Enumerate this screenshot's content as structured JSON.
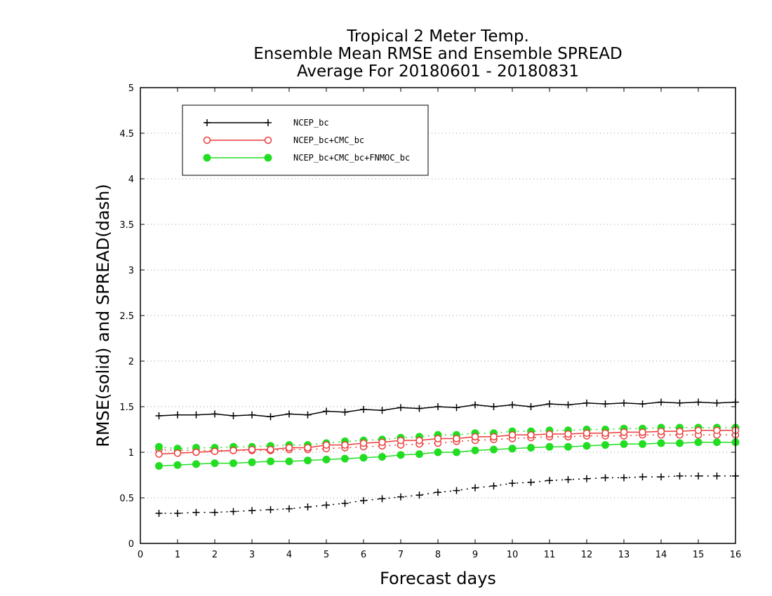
{
  "chart_data": {
    "type": "line",
    "title": [
      "Tropical 2 Meter Temp.",
      "Ensemble Mean RMSE and Ensemble SPREAD",
      "Average For 20180601 - 20180831"
    ],
    "xlabel": "Forecast days",
    "ylabel": "RMSE(solid) and SPREAD(dash)",
    "xlim": [
      0,
      16
    ],
    "ylim": [
      0,
      5
    ],
    "xticks": [
      0,
      1,
      2,
      3,
      4,
      5,
      6,
      7,
      8,
      9,
      10,
      11,
      12,
      13,
      14,
      15,
      16
    ],
    "yticks": [
      0,
      0.5,
      1,
      1.5,
      2,
      2.5,
      3,
      3.5,
      4,
      4.5,
      5
    ],
    "ytick_labels": [
      "0",
      "0.5",
      "1",
      "1.5",
      "2",
      "2.5",
      "3",
      "3.5",
      "4",
      "4.5",
      "5"
    ],
    "grid": "horizontal dotted",
    "legend_position": "top-left",
    "x": [
      0.5,
      1,
      1.5,
      2,
      2.5,
      3,
      3.5,
      4,
      4.5,
      5,
      5.5,
      6,
      6.5,
      7,
      7.5,
      8,
      8.5,
      9,
      9.5,
      10,
      10.5,
      11,
      11.5,
      12,
      12.5,
      13,
      13.5,
      14,
      14.5,
      15,
      15.5,
      16
    ],
    "series": [
      {
        "name": "NCEP_bc",
        "color": "#000000",
        "marker": "plus",
        "rmse": [
          1.4,
          1.41,
          1.41,
          1.42,
          1.4,
          1.41,
          1.39,
          1.42,
          1.41,
          1.45,
          1.44,
          1.47,
          1.46,
          1.49,
          1.48,
          1.5,
          1.49,
          1.52,
          1.5,
          1.52,
          1.5,
          1.53,
          1.52,
          1.54,
          1.53,
          1.54,
          1.53,
          1.55,
          1.54,
          1.55,
          1.54,
          1.55
        ],
        "spread": [
          0.33,
          0.33,
          0.34,
          0.34,
          0.35,
          0.36,
          0.37,
          0.38,
          0.4,
          0.42,
          0.44,
          0.47,
          0.49,
          0.51,
          0.53,
          0.56,
          0.58,
          0.61,
          0.63,
          0.66,
          0.67,
          0.69,
          0.7,
          0.71,
          0.72,
          0.72,
          0.73,
          0.73,
          0.74,
          0.74,
          0.74,
          0.74
        ]
      },
      {
        "name": "NCEP_bc+CMC_bc",
        "color": "#ee3b3b",
        "marker": "open-circle",
        "rmse": [
          0.98,
          0.99,
          1.0,
          1.01,
          1.02,
          1.03,
          1.03,
          1.05,
          1.05,
          1.08,
          1.08,
          1.1,
          1.11,
          1.13,
          1.13,
          1.15,
          1.15,
          1.17,
          1.17,
          1.19,
          1.19,
          1.2,
          1.2,
          1.21,
          1.21,
          1.22,
          1.22,
          1.23,
          1.23,
          1.24,
          1.24,
          1.24
        ],
        "spread": [
          1.03,
          1.02,
          1.02,
          1.02,
          1.02,
          1.02,
          1.02,
          1.03,
          1.03,
          1.04,
          1.05,
          1.06,
          1.07,
          1.08,
          1.09,
          1.1,
          1.12,
          1.13,
          1.14,
          1.15,
          1.16,
          1.17,
          1.17,
          1.18,
          1.18,
          1.18,
          1.19,
          1.19,
          1.19,
          1.19,
          1.19,
          1.19
        ]
      },
      {
        "name": "NCEP_bc+CMC_bc+FNMOC_bc",
        "color": "#22dd22",
        "marker": "filled-circle",
        "rmse": [
          0.85,
          0.86,
          0.87,
          0.88,
          0.88,
          0.89,
          0.9,
          0.9,
          0.91,
          0.92,
          0.93,
          0.94,
          0.95,
          0.97,
          0.98,
          1.0,
          1.0,
          1.02,
          1.03,
          1.04,
          1.05,
          1.06,
          1.06,
          1.07,
          1.08,
          1.09,
          1.09,
          1.1,
          1.1,
          1.11,
          1.11,
          1.11
        ],
        "spread": [
          1.06,
          1.04,
          1.05,
          1.05,
          1.06,
          1.06,
          1.07,
          1.08,
          1.08,
          1.1,
          1.12,
          1.13,
          1.14,
          1.16,
          1.17,
          1.19,
          1.19,
          1.21,
          1.21,
          1.23,
          1.23,
          1.24,
          1.24,
          1.25,
          1.25,
          1.26,
          1.26,
          1.27,
          1.27,
          1.27,
          1.27,
          1.27
        ]
      }
    ]
  }
}
